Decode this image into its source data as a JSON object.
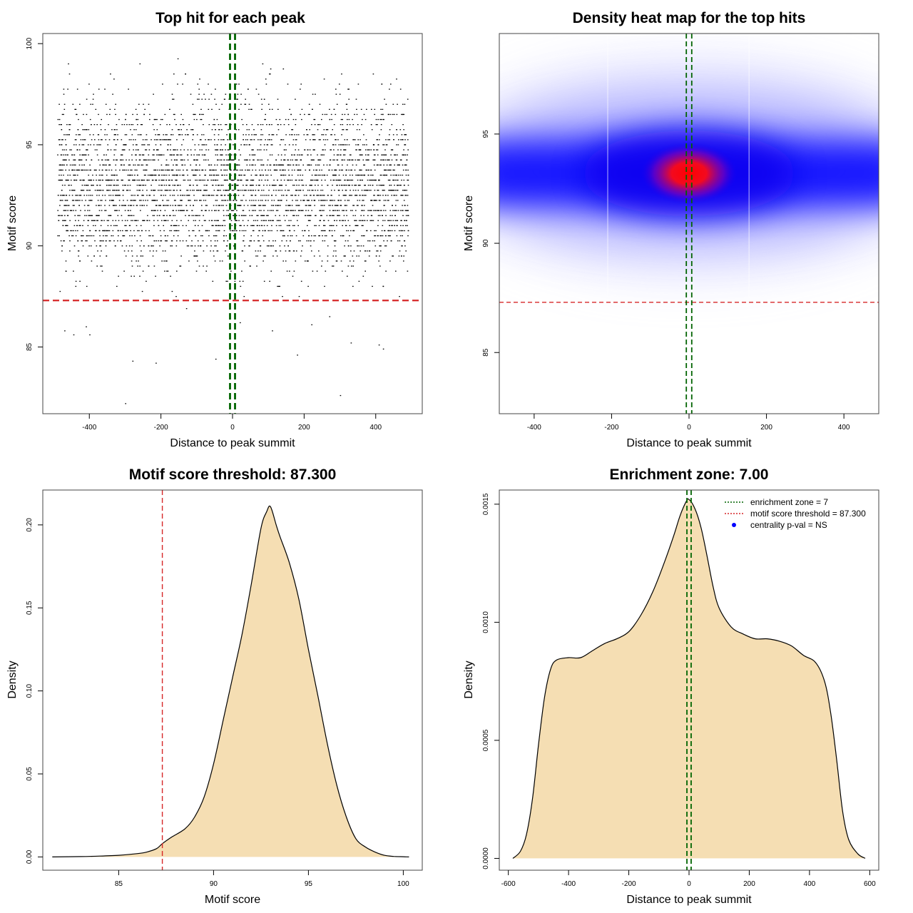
{
  "chart_data": [
    {
      "type": "scatter",
      "title": "Top hit for each peak",
      "xlabel": "Distance to peak summit",
      "ylabel": "Motif score",
      "xlim": [
        -530,
        530
      ],
      "ylim": [
        81.7,
        100.5
      ],
      "xticks": [
        -400,
        -200,
        0,
        200,
        400
      ],
      "yticks": [
        85,
        90,
        95,
        100
      ],
      "x_range": [
        -490,
        490
      ],
      "score_mean": 93.0,
      "score_sd": 2.0,
      "score_step": 0.25,
      "n_points": 4200,
      "outliers": [
        {
          "x": -300,
          "y": 82.2
        },
        {
          "x": 300,
          "y": 82.6
        },
        {
          "x": -215,
          "y": 84.2
        },
        {
          "x": -280,
          "y": 84.3
        },
        {
          "x": -48,
          "y": 84.4
        },
        {
          "x": 180,
          "y": 84.6
        },
        {
          "x": -470,
          "y": 85.8
        },
        {
          "x": -410,
          "y": 86.0
        },
        {
          "x": -400,
          "y": 85.6
        },
        {
          "x": -445,
          "y": 85.6
        },
        {
          "x": 110,
          "y": 85.8
        },
        {
          "x": 220,
          "y": 86.1
        },
        {
          "x": 330,
          "y": 85.2
        },
        {
          "x": 420,
          "y": 84.9
        },
        {
          "x": 408,
          "y": 85.1
        },
        {
          "x": 270,
          "y": 86.5
        },
        {
          "x": 20,
          "y": 86.2
        },
        {
          "x": -130,
          "y": 86.9
        }
      ],
      "threshold_y": 87.3,
      "zone_lines_x": [
        -7,
        7
      ],
      "colors": {
        "points": "#000000",
        "threshold": "#d62728",
        "zone": "#006400"
      }
    },
    {
      "type": "heatmap",
      "title": "Density heat map for the top hits",
      "xlabel": "Distance to peak summit",
      "ylabel": "Motif score",
      "xlim": [
        -490,
        490
      ],
      "ylim": [
        82.2,
        99.6
      ],
      "xticks": [
        -400,
        -200,
        0,
        200,
        400
      ],
      "yticks": [
        85,
        90,
        95
      ],
      "center": [
        0,
        93.2
      ],
      "threshold_y": 87.3,
      "zone_lines_x": [
        -7,
        7
      ],
      "colors": {
        "low": "#ffffff",
        "mid": "#0000ff",
        "high": "#ff0000",
        "threshold": "#d62728",
        "zone": "#006400"
      }
    },
    {
      "type": "area",
      "title": "Motif score threshold: 87.300",
      "xlabel": "Motif score",
      "ylabel": "Density",
      "xlim": [
        81.0,
        101.0
      ],
      "ylim": [
        -0.008,
        0.221
      ],
      "xticks": [
        85,
        90,
        95,
        100
      ],
      "yticks": [
        0.0,
        0.05,
        0.1,
        0.15,
        0.2
      ],
      "ytick_labels": [
        "0.00",
        "0.05",
        "0.10",
        "0.15",
        "0.20"
      ],
      "x": [
        81.5,
        83,
        84,
        85,
        86,
        86.5,
        87,
        87.3,
        87.8,
        88.5,
        89,
        89.5,
        90,
        90.5,
        91,
        91.5,
        92,
        92.5,
        92.8,
        93,
        93.3,
        93.5,
        94,
        94.5,
        95,
        95.5,
        96,
        96.5,
        97,
        97.5,
        98,
        98.5,
        99,
        99.5,
        100,
        100.3
      ],
      "y": [
        0.0,
        0.0002,
        0.0005,
        0.001,
        0.002,
        0.003,
        0.005,
        0.008,
        0.012,
        0.017,
        0.024,
        0.036,
        0.056,
        0.082,
        0.108,
        0.134,
        0.165,
        0.198,
        0.208,
        0.211,
        0.2,
        0.193,
        0.177,
        0.155,
        0.125,
        0.097,
        0.068,
        0.043,
        0.024,
        0.011,
        0.006,
        0.003,
        0.001,
        0.0003,
        0.0001,
        0.0
      ],
      "threshold_x": 87.3,
      "colors": {
        "fill": "#f5deb3",
        "line": "#000000",
        "threshold": "#d62728"
      }
    },
    {
      "type": "area",
      "title": "Enrichment zone: 7.00",
      "xlabel": "Distance to peak summit",
      "ylabel": "Density",
      "xlim": [
        -630,
        630
      ],
      "ylim": [
        -5e-05,
        0.00156
      ],
      "xticks": [
        -600,
        -400,
        -200,
        0,
        200,
        400,
        600
      ],
      "yticks": [
        0.0,
        0.0005,
        0.001,
        0.0015
      ],
      "ytick_labels": [
        "0.0000",
        "0.0005",
        "0.0010",
        "0.0015"
      ],
      "x": [
        -585,
        -560,
        -540,
        -520,
        -500,
        -480,
        -460,
        -440,
        -400,
        -360,
        -320,
        -280,
        -240,
        -200,
        -160,
        -120,
        -80,
        -50,
        -30,
        -10,
        0,
        20,
        40,
        60,
        80,
        100,
        140,
        180,
        220,
        260,
        300,
        340,
        380,
        420,
        450,
        470,
        490,
        510,
        530,
        560,
        585
      ],
      "y": [
        0.0,
        3e-05,
        0.0001,
        0.00025,
        0.00048,
        0.00068,
        0.0008,
        0.00084,
        0.00085,
        0.00085,
        0.00088,
        0.00091,
        0.00093,
        0.00096,
        0.00103,
        0.00113,
        0.00126,
        0.00137,
        0.00145,
        0.00151,
        0.00152,
        0.00148,
        0.0014,
        0.00128,
        0.00115,
        0.00106,
        0.00098,
        0.00095,
        0.00093,
        0.00093,
        0.00092,
        0.0009,
        0.00086,
        0.00083,
        0.00075,
        0.00062,
        0.00042,
        0.0002,
        8e-05,
        2e-05,
        0.0
      ],
      "zone_lines_x": [
        -7,
        7
      ],
      "legend": [
        {
          "label": "enrichment zone = 7",
          "color": "#006400",
          "kind": "line"
        },
        {
          "label": "motif score threshold = 87.300",
          "color": "#d62728",
          "kind": "line"
        },
        {
          "label": "centrality p-val = NS",
          "color": "#0000ff",
          "kind": "point"
        }
      ],
      "legend_placement": "top-right",
      "colors": {
        "fill": "#f5deb3",
        "line": "#000000",
        "zone": "#006400"
      }
    }
  ]
}
